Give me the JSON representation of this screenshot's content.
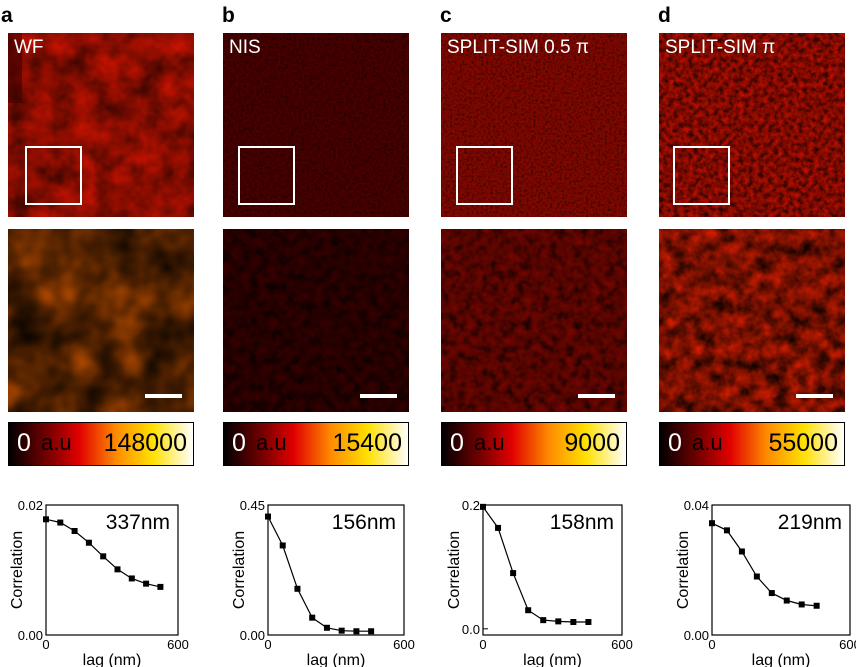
{
  "panels": [
    {
      "letter": "a",
      "image_label": "WF",
      "colorbar": {
        "min": "0",
        "unit": "a.u",
        "max": "148000"
      },
      "plot": {
        "annotation": "337nm",
        "xlabel": "lag (nm)",
        "ylabel": "Correlation",
        "x_ticks": [
          "0",
          "600"
        ],
        "y_ticks": [
          "0.00",
          "0.02"
        ]
      }
    },
    {
      "letter": "b",
      "image_label": "NIS",
      "colorbar": {
        "min": "0",
        "unit": "a.u",
        "max": "15400"
      },
      "plot": {
        "annotation": "156nm",
        "xlabel": "lag (nm)",
        "ylabel": "Correlation",
        "x_ticks": [
          "0",
          "600"
        ],
        "y_ticks": [
          "0.00",
          "0.45"
        ]
      }
    },
    {
      "letter": "c",
      "image_label": "SPLIT-SIM 0.5 π",
      "colorbar": {
        "min": "0",
        "unit": "a.u",
        "max": "9000"
      },
      "plot": {
        "annotation": "158nm",
        "xlabel": "lag (nm)",
        "ylabel": "Correlation",
        "x_ticks": [
          "0",
          "600"
        ],
        "y_ticks": [
          "0.0",
          "0.2"
        ]
      }
    },
    {
      "letter": "d",
      "image_label": "SPLIT-SIM π",
      "colorbar": {
        "min": "0",
        "unit": "a.u",
        "max": "55000"
      },
      "plot": {
        "annotation": "219nm",
        "xlabel": "lag (nm)",
        "ylabel": "Correlation",
        "x_ticks": [
          "0",
          "600"
        ],
        "y_ticks": [
          "0.00",
          "0.04"
        ]
      }
    }
  ],
  "chart_data": [
    {
      "type": "line",
      "xlabel": "lag (nm)",
      "ylabel": "Correlation",
      "xlim": [
        0,
        600
      ],
      "ylim": [
        0,
        0.02
      ],
      "x": [
        0,
        65,
        130,
        195,
        260,
        325,
        390,
        455,
        520
      ],
      "y": [
        0.0178,
        0.0173,
        0.016,
        0.0142,
        0.0121,
        0.0101,
        0.0087,
        0.0079,
        0.0074
      ]
    },
    {
      "type": "line",
      "xlabel": "lag (nm)",
      "ylabel": "Correlation",
      "xlim": [
        0,
        600
      ],
      "ylim": [
        0,
        0.45
      ],
      "x": [
        0,
        65,
        130,
        195,
        260,
        325,
        390,
        455
      ],
      "y": [
        0.41,
        0.31,
        0.16,
        0.06,
        0.025,
        0.015,
        0.013,
        0.013
      ]
    },
    {
      "type": "line",
      "xlabel": "lag (nm)",
      "ylabel": "Correlation",
      "xlim": [
        0,
        600
      ],
      "ylim": [
        -0.01,
        0.2
      ],
      "x": [
        0,
        65,
        130,
        195,
        260,
        325,
        390,
        455
      ],
      "y": [
        0.197,
        0.163,
        0.09,
        0.03,
        0.014,
        0.012,
        0.011,
        0.011
      ]
    },
    {
      "type": "line",
      "xlabel": "lag (nm)",
      "ylabel": "Correlation",
      "xlim": [
        0,
        600
      ],
      "ylim": [
        0,
        0.04
      ],
      "x": [
        0,
        65,
        130,
        195,
        260,
        325,
        390,
        455
      ],
      "y": [
        0.0344,
        0.0322,
        0.0257,
        0.018,
        0.0129,
        0.0106,
        0.0094,
        0.009
      ]
    }
  ],
  "colors": {
    "hot_map": [
      "#000000",
      "#6a0000",
      "#d40000",
      "#ff2a00",
      "#ff8a00",
      "#ffd800",
      "#ffff80",
      "#ffffff"
    ],
    "axis": "#000000",
    "roi_box": "#ffffff"
  }
}
